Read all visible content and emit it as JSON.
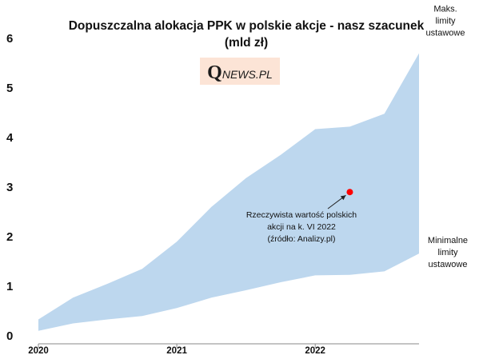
{
  "chart_data": {
    "type": "area",
    "title_line1": "Dopuszczalna alokacja PPK w polskie akcje - nasz szacunek",
    "title_line2": "(mld zł)",
    "xlabel": "",
    "ylabel": "",
    "xlim": [
      2020.0,
      2022.75
    ],
    "ylim": [
      0,
      6
    ],
    "y_ticks": [
      "0",
      "1",
      "2",
      "3",
      "4",
      "5",
      "6"
    ],
    "x_ticks": [
      {
        "value": 2020,
        "label": "2020"
      },
      {
        "value": 2021,
        "label": "2021"
      },
      {
        "value": 2022,
        "label": "2022"
      }
    ],
    "grid": false,
    "band_color": "#bdd7ee",
    "upper_series": {
      "name": "Maks. limity ustawowe",
      "label_lines": [
        "Maks.",
        "limity",
        "ustawowe"
      ],
      "x": [
        2020.0,
        2020.25,
        2020.5,
        2020.75,
        2021.0,
        2021.25,
        2021.5,
        2021.75,
        2022.0,
        2022.25,
        2022.5,
        2022.75
      ],
      "values": [
        0.33,
        0.77,
        1.05,
        1.35,
        1.9,
        2.6,
        3.18,
        3.65,
        4.17,
        4.22,
        4.48,
        5.7
      ]
    },
    "lower_series": {
      "name": "Minimalne limity ustawowe",
      "label_lines": [
        "Minimalne",
        "limity",
        "ustawowe"
      ],
      "x": [
        2020.0,
        2020.25,
        2020.5,
        2020.75,
        2021.0,
        2021.25,
        2021.5,
        2021.75,
        2022.0,
        2022.25,
        2022.5,
        2022.75
      ],
      "values": [
        0.1,
        0.25,
        0.33,
        0.4,
        0.56,
        0.77,
        0.92,
        1.08,
        1.22,
        1.23,
        1.3,
        1.66
      ]
    },
    "point": {
      "x": 2022.25,
      "y": 2.9,
      "color": "#ff0000",
      "label_lines": [
        "Rzeczywista wartość polskich",
        "akcji na k. VI 2022",
        "(źródło: Analizy.pl)"
      ]
    },
    "logo": {
      "q": "Q",
      "rest": "NEWS.PL",
      "bg": "#fce4d6"
    }
  }
}
